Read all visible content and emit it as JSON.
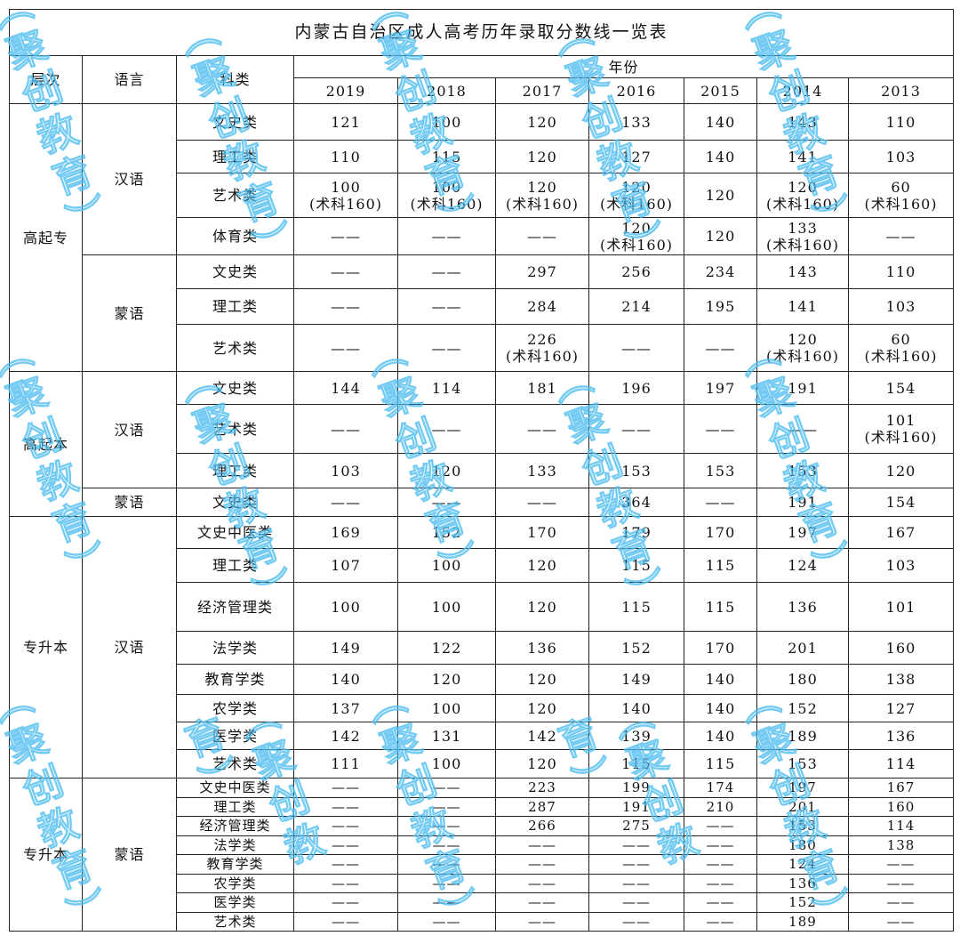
{
  "title": "内蒙古自治区成人高考历年录取分数线一览表",
  "headers": {
    "level": "层次",
    "lang": "语言",
    "subject": "科类",
    "year": "年份"
  },
  "years": [
    "2019",
    "2018",
    "2017",
    "2016",
    "2015",
    "2014",
    "2013"
  ],
  "watermark": "（聚创教育）",
  "groups": [
    {
      "level": "高起专",
      "langs": [
        {
          "lang": "汉语",
          "rows": [
            {
              "subject": "文史类",
              "h": 41,
              "values": [
                "121",
                "100",
                "120",
                "133",
                "140",
                "143",
                "110"
              ]
            },
            {
              "subject": "理工类",
              "h": 37,
              "values": [
                "110",
                "115",
                "120",
                "127",
                "140",
                "141",
                "103"
              ]
            },
            {
              "subject": "艺术类",
              "h": 50,
              "values": [
                "100\n(术科160)",
                "100\n(术科160)",
                "120\n(术科160)",
                "120\n(术科160)",
                "120",
                "120\n(术科160)",
                "60\n(术科160)"
              ]
            },
            {
              "subject": "体育类",
              "h": 42,
              "values": [
                "——",
                "——",
                "——",
                "120\n(术科160)",
                "120",
                "133\n(术科160)",
                "——"
              ]
            }
          ]
        },
        {
          "lang": "蒙语",
          "rows": [
            {
              "subject": "文史类",
              "h": 38,
              "values": [
                "——",
                "——",
                "297",
                "256",
                "234",
                "143",
                "110"
              ]
            },
            {
              "subject": "理工类",
              "h": 40,
              "values": [
                "——",
                "——",
                "284",
                "214",
                "195",
                "141",
                "103"
              ]
            },
            {
              "subject": "艺术类",
              "h": 53,
              "values": [
                "——",
                "——",
                "226\n(术科160)",
                "——",
                "——",
                "120\n(术科160)",
                "60\n(术科160)"
              ]
            }
          ]
        }
      ]
    },
    {
      "level": "高起本",
      "langs": [
        {
          "lang": "汉语",
          "rows": [
            {
              "subject": "文史类",
              "h": 37,
              "values": [
                "144",
                "114",
                "181",
                "196",
                "197",
                "191",
                "154"
              ]
            },
            {
              "subject": "艺术类",
              "h": 55,
              "values": [
                "——",
                "——",
                "——",
                "——",
                "——",
                "——",
                "101\n(术科160)"
              ]
            },
            {
              "subject": "理工类",
              "h": 39,
              "values": [
                "103",
                "120",
                "133",
                "153",
                "153",
                "153",
                "120"
              ]
            }
          ]
        },
        {
          "lang": "蒙语",
          "rows": [
            {
              "subject": "文史类",
              "h": 32,
              "values": [
                "——",
                "——",
                "——",
                "364",
                "——",
                "191",
                "154"
              ]
            }
          ]
        }
      ]
    },
    {
      "level": "专升本",
      "langs": [
        {
          "lang": "汉语",
          "rows": [
            {
              "subject": "文史中医类",
              "h": 36,
              "values": [
                "169",
                "152",
                "170",
                "179",
                "170",
                "197",
                "167"
              ]
            },
            {
              "subject": "理工类",
              "h": 38,
              "values": [
                "107",
                "100",
                "120",
                "115",
                "115",
                "124",
                "103"
              ]
            },
            {
              "subject": "经济管理类",
              "h": 55,
              "values": [
                "100",
                "100",
                "120",
                "115",
                "115",
                "136",
                "101"
              ]
            },
            {
              "subject": "法学类",
              "h": 37,
              "values": [
                "149",
                "122",
                "136",
                "152",
                "170",
                "201",
                "160"
              ]
            },
            {
              "subject": "教育学类",
              "h": 34,
              "values": [
                "140",
                "120",
                "120",
                "149",
                "140",
                "180",
                "138"
              ]
            },
            {
              "subject": "农学类",
              "h": 31,
              "values": [
                "137",
                "100",
                "120",
                "140",
                "140",
                "152",
                "127"
              ]
            },
            {
              "subject": "医学类",
              "h": 31,
              "values": [
                "142",
                "131",
                "142",
                "139",
                "140",
                "189",
                "136"
              ]
            },
            {
              "subject": "艺术类",
              "h": 32,
              "values": [
                "111",
                "100",
                "120",
                "115",
                "115",
                "153",
                "114"
              ]
            }
          ]
        }
      ]
    },
    {
      "level": "专升本",
      "small": true,
      "langs": [
        {
          "lang": "蒙语",
          "rows": [
            {
              "subject": "文史中医类",
              "h": 22,
              "values": [
                "——",
                "——",
                "223",
                "199",
                "174",
                "197",
                "167"
              ]
            },
            {
              "subject": "理工类",
              "h": 21,
              "values": [
                "——",
                "——",
                "287",
                "191",
                "210",
                "201",
                "160"
              ]
            },
            {
              "subject": "经济管理类",
              "h": 22,
              "values": [
                "——",
                "——",
                "266",
                "275",
                "——",
                "153",
                "114"
              ]
            },
            {
              "subject": "法学类",
              "h": 21,
              "values": [
                "——",
                "——",
                "——",
                "——",
                "——",
                "180",
                "138"
              ]
            },
            {
              "subject": "教育学类",
              "h": 22,
              "values": [
                "——",
                "——",
                "——",
                "——",
                "——",
                "124",
                "——"
              ]
            },
            {
              "subject": "农学类",
              "h": 21,
              "values": [
                "——",
                "——",
                "——",
                "——",
                "——",
                "136",
                "——"
              ]
            },
            {
              "subject": "医学类",
              "h": 22,
              "values": [
                "——",
                "——",
                "——",
                "——",
                "——",
                "152",
                "——"
              ]
            },
            {
              "subject": "艺术类",
              "h": 21,
              "values": [
                "——",
                "——",
                "——",
                "——",
                "——",
                "189",
                "——"
              ]
            }
          ]
        }
      ]
    }
  ]
}
